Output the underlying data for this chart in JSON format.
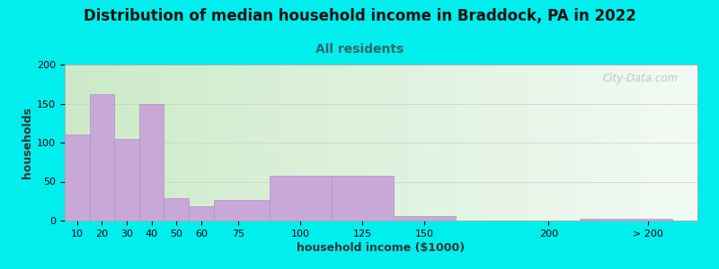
{
  "title": "Distribution of median household income in Braddock, PA in 2022",
  "subtitle": "All residents",
  "xlabel": "household income ($1000)",
  "ylabel": "households",
  "background_color": "#00EEEE",
  "plot_bg_color_topleft": "#cce8c0",
  "plot_bg_color_right": "#e8f5f0",
  "plot_bg_color_white": "#f8faf8",
  "bar_color": "#c9a8d8",
  "bar_edge_color": "#b090c8",
  "watermark": "City-Data.com",
  "bar_labels": [
    "10",
    "20",
    "30",
    "40",
    "50",
    "60",
    "75",
    "100",
    "125",
    "150",
    "200",
    "> 200"
  ],
  "bar_heights": [
    110,
    162,
    105,
    150,
    29,
    18,
    27,
    58,
    57,
    6,
    0,
    2
  ],
  "bar_lefts": [
    5,
    15,
    25,
    35,
    45,
    55,
    65,
    87.5,
    112.5,
    137.5,
    162.5,
    212.5
  ],
  "bar_widths": [
    10,
    10,
    10,
    10,
    10,
    10,
    22.5,
    25,
    25,
    25,
    50,
    37.5
  ],
  "bar_tick_pos": [
    10,
    20,
    30,
    40,
    50,
    60,
    75,
    100,
    125,
    150,
    200,
    240
  ],
  "xlim": [
    5,
    260
  ],
  "ylim": [
    0,
    200
  ],
  "yticks": [
    0,
    50,
    100,
    150,
    200
  ],
  "title_fontsize": 12,
  "subtitle_fontsize": 10,
  "axis_label_fontsize": 9,
  "tick_fontsize": 8
}
